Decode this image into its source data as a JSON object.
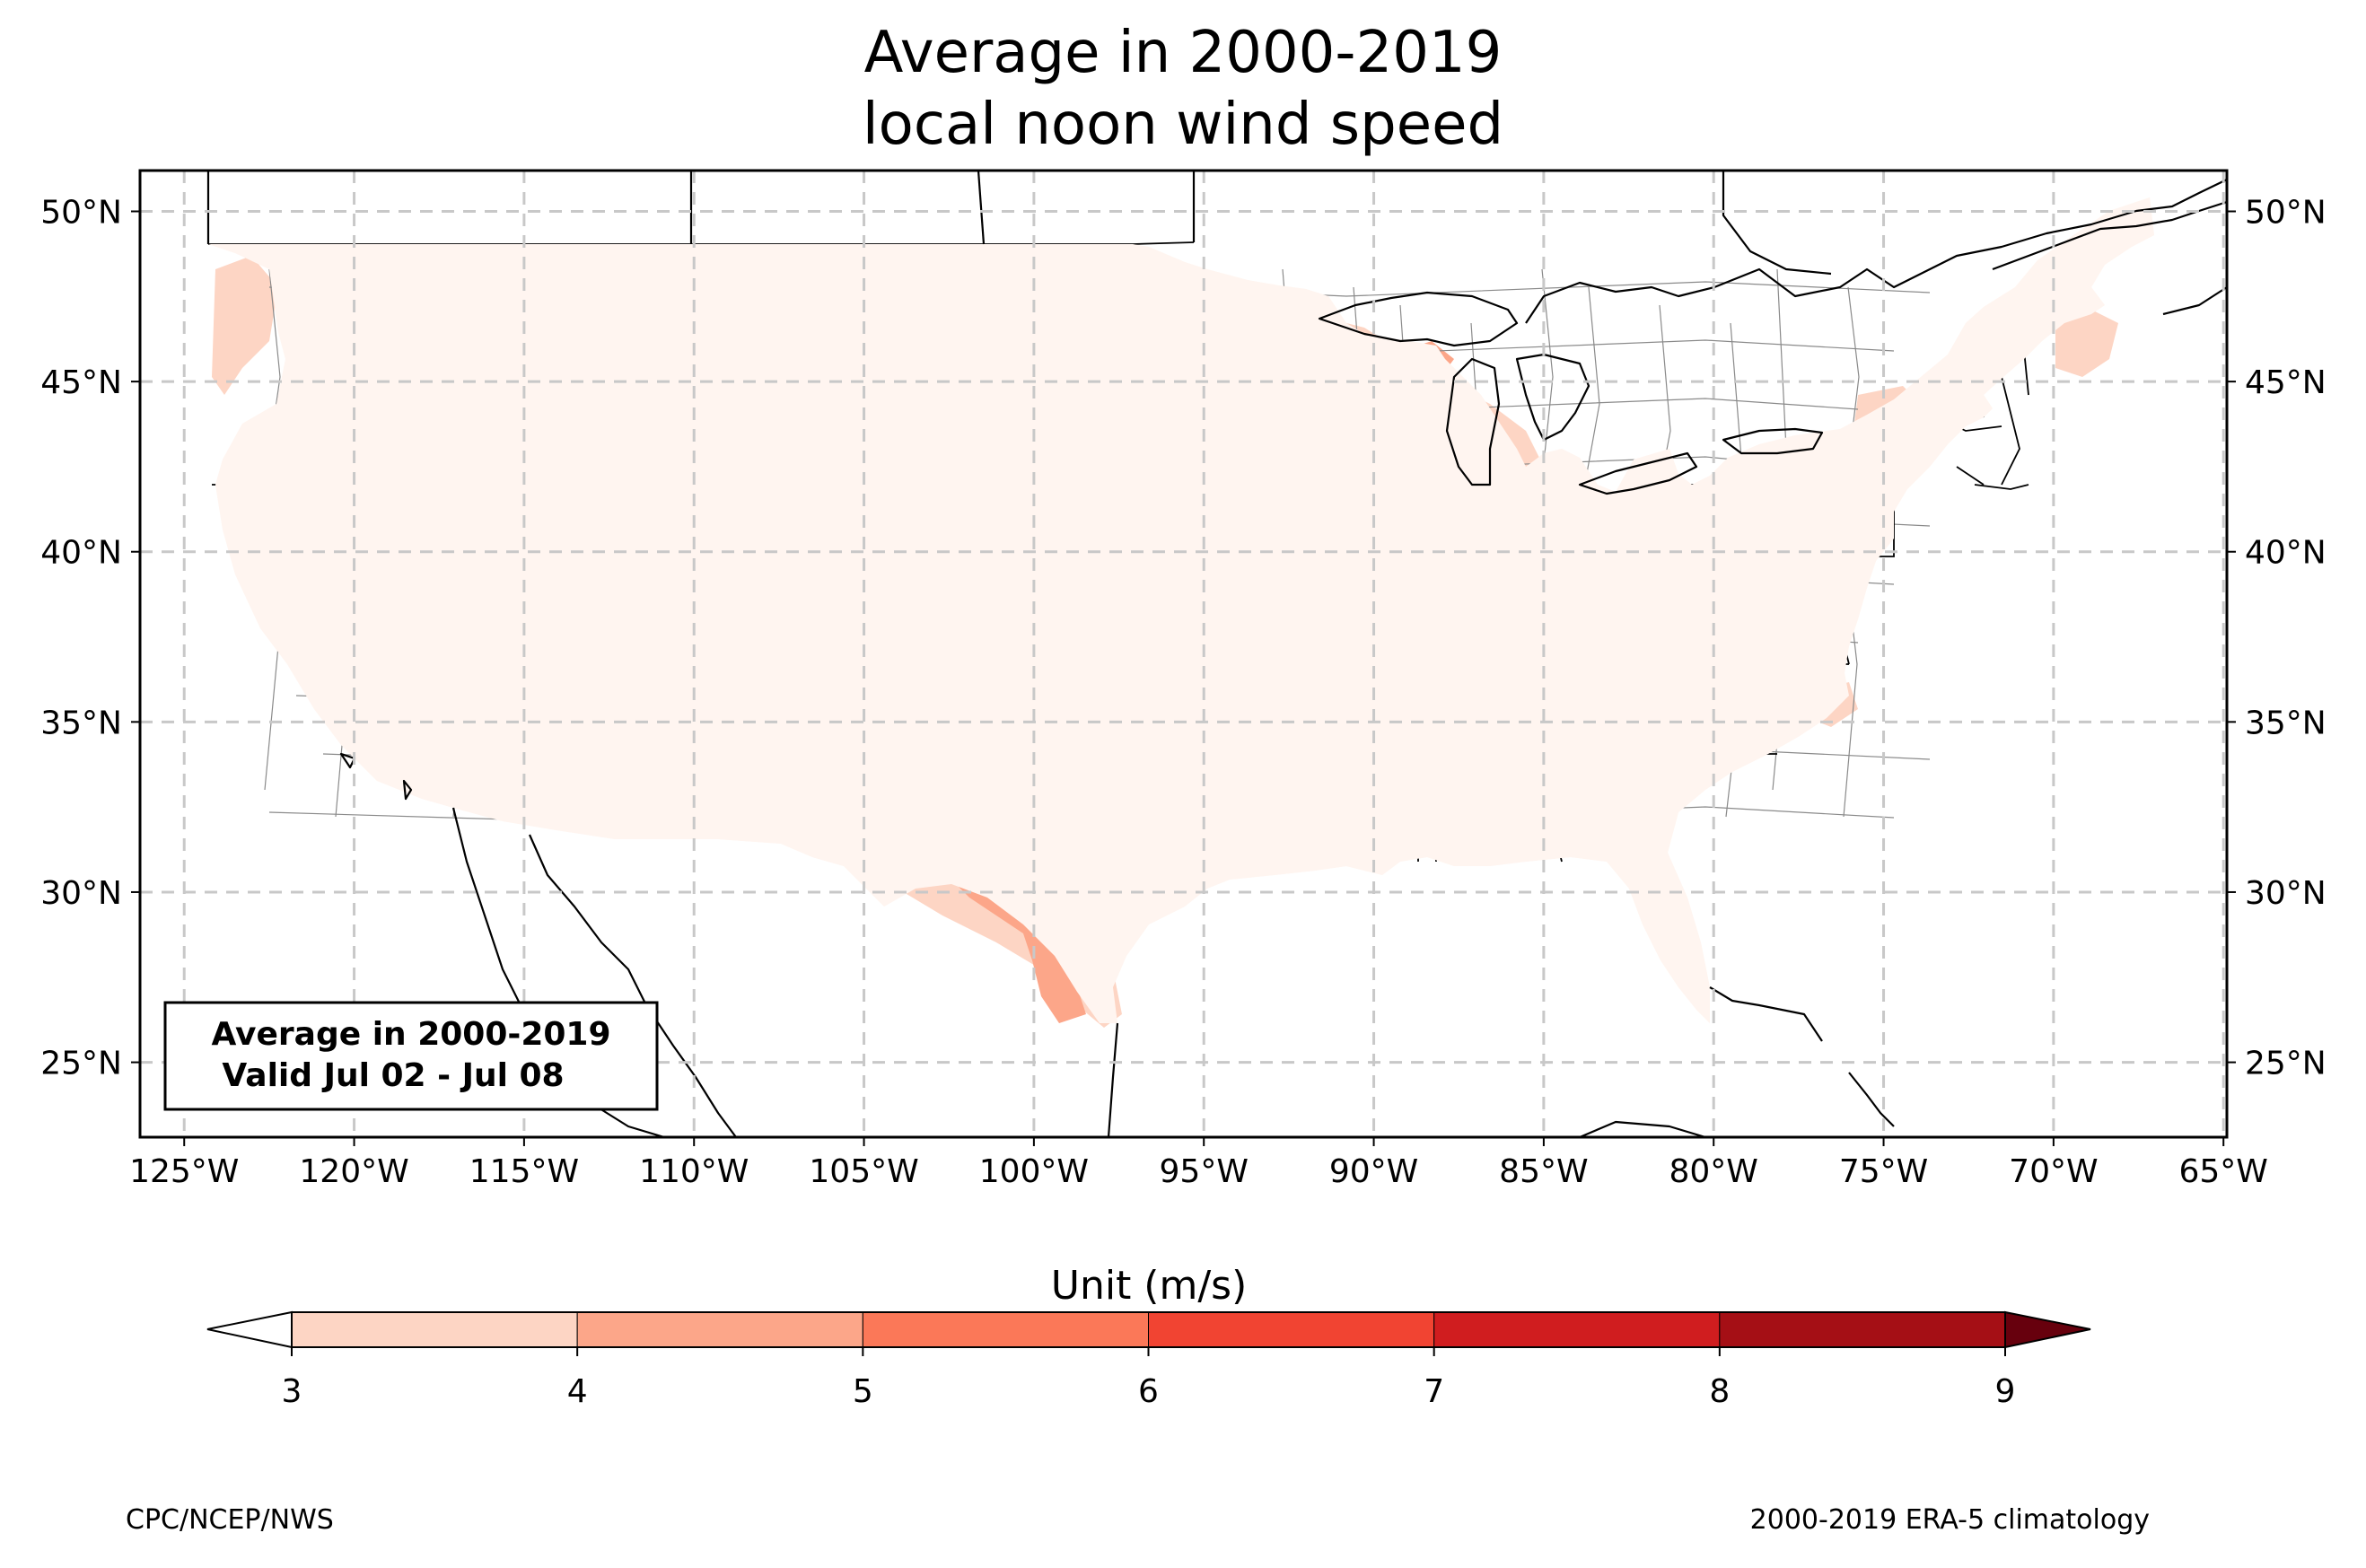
{
  "title_line1": "Average in 2000-2019",
  "title_line2": "local noon wind speed",
  "info_box": {
    "line1": "Average in 2000-2019",
    "line2": "Valid Jul 02 - Jul 08"
  },
  "lon_ticks": [
    "125°W",
    "120°W",
    "115°W",
    "110°W",
    "105°W",
    "100°W",
    "95°W",
    "90°W",
    "85°W",
    "80°W",
    "75°W",
    "70°W",
    "65°W"
  ],
  "lat_ticks": [
    "50°N",
    "45°N",
    "40°N",
    "35°N",
    "30°N",
    "25°N"
  ],
  "colorbar": {
    "label": "Unit (m/s)",
    "ticks": [
      "3",
      "4",
      "5",
      "6",
      "7",
      "8",
      "9"
    ],
    "bins": [
      {
        "range": [
          3,
          4
        ],
        "color": "#fdd5c4"
      },
      {
        "range": [
          4,
          5
        ],
        "color": "#fca689"
      },
      {
        "range": [
          5,
          6
        ],
        "color": "#fb7858"
      },
      {
        "range": [
          6,
          7
        ],
        "color": "#f14432"
      },
      {
        "range": [
          7,
          8
        ],
        "color": "#d01d1f"
      },
      {
        "range": [
          8,
          9
        ],
        "color": "#a50f15"
      }
    ],
    "under_color": "#ffffff",
    "over_color": "#67000d",
    "extend": "both"
  },
  "footer_left": "CPC/NCEP/NWS",
  "footer_right": "2000-2019 ERA-5 climatology",
  "colors": {
    "lt3": "#fff5f0",
    "b34": "#fdd5c4",
    "b45": "#fca689",
    "b56": "#fb7858"
  },
  "extent": {
    "lon": [
      -126.3,
      -64.9
    ],
    "lat": [
      22.8,
      51.2
    ]
  }
}
